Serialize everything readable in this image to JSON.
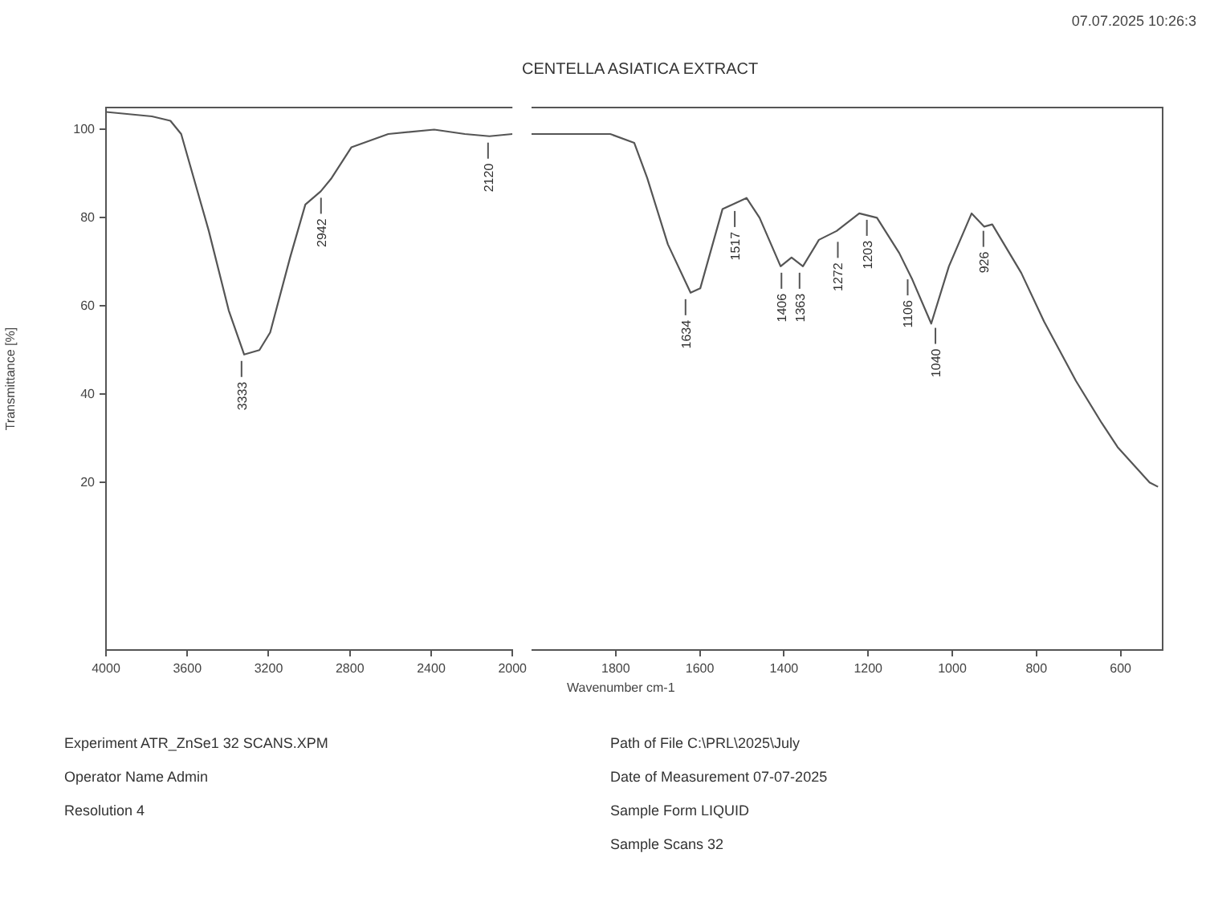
{
  "chart_data": [
    {
      "type": "line",
      "ylabel": "Transmittance [%]",
      "xlim": [
        4000,
        2000
      ],
      "xticks": [
        4000,
        3600,
        3200,
        2800,
        2400,
        2000
      ],
      "ylim": [
        -18,
        105
      ],
      "yticks": [
        20,
        40,
        60,
        80,
        100
      ],
      "series": [
        {
          "color": "#555555",
          "x": [
            4000,
            3774,
            3683,
            3630,
            3494,
            3396,
            3320,
            3245,
            3192,
            3094,
            3019,
            2943,
            2890,
            2792,
            2611,
            2385,
            2234,
            2113,
            2000
          ],
          "values": [
            104,
            103,
            102,
            99,
            77,
            59,
            49,
            50,
            54,
            71,
            83,
            86,
            89,
            96,
            99,
            100,
            99,
            98.5,
            99
          ]
        }
      ],
      "annotations": [
        "07.07.2025 10:26:3",
        {
          "text": "3333",
          "x": 3333,
          "y": 49
        },
        {
          "text": "2942",
          "x": 2942,
          "y": 86
        },
        {
          "text": "2120",
          "x": 2120,
          "y": 98.5
        },
        "Experiment ATR_ZnSe1 32 SCANS.XPM",
        "Operator Name Admin",
        "Resolution 4",
        "Path of File C:\\PRL\\2025\\July",
        "Date of Measurement 07-07-2025",
        "Sample Form LIQUID",
        "Sample Scans 32"
      ]
    },
    {
      "type": "line",
      "title": "CENTELLA ASIATICA EXTRACT",
      "xlabel": "Wavenumber cm-1",
      "tick_labels": "x",
      "xlim": [
        2000,
        500
      ],
      "xticks": [
        1800,
        1600,
        1400,
        1200,
        1000,
        800,
        600
      ],
      "ylim": [
        -18,
        105
      ],
      "series": [
        {
          "color": "#555555",
          "x": [
            2000,
            1927,
            1813,
            1756,
            1725,
            1676,
            1622,
            1599,
            1546,
            1523,
            1489,
            1458,
            1408,
            1382,
            1355,
            1317,
            1275,
            1221,
            1179,
            1126,
            1095,
            1050,
            1008,
            954,
            924,
            905,
            836,
            782,
            706,
            645,
            607,
            569,
            531,
            511
          ],
          "values": [
            99,
            99,
            99,
            97,
            89,
            74,
            63,
            64,
            82,
            83,
            84.5,
            80,
            69,
            71,
            69,
            75,
            77,
            81,
            80,
            72,
            66,
            56,
            69,
            81,
            78,
            78.5,
            67.5,
            56.5,
            43,
            33.5,
            28,
            24,
            20,
            19
          ]
        }
      ],
      "annotations": [
        {
          "text": "1634",
          "x": 1634,
          "y": 63
        },
        {
          "text": "1517",
          "x": 1517,
          "y": 83
        },
        {
          "text": "1406",
          "x": 1406,
          "y": 69
        },
        {
          "text": "1363",
          "x": 1363,
          "y": 69
        },
        {
          "text": "1272",
          "x": 1272,
          "y": 76
        },
        {
          "text": "1203",
          "x": 1203,
          "y": 81
        },
        {
          "text": "1106",
          "x": 1106,
          "y": 67.5
        },
        {
          "text": "1040",
          "x": 1040,
          "y": 56.5
        },
        {
          "text": "926",
          "x": 926,
          "y": 78.5
        }
      ]
    }
  ]
}
